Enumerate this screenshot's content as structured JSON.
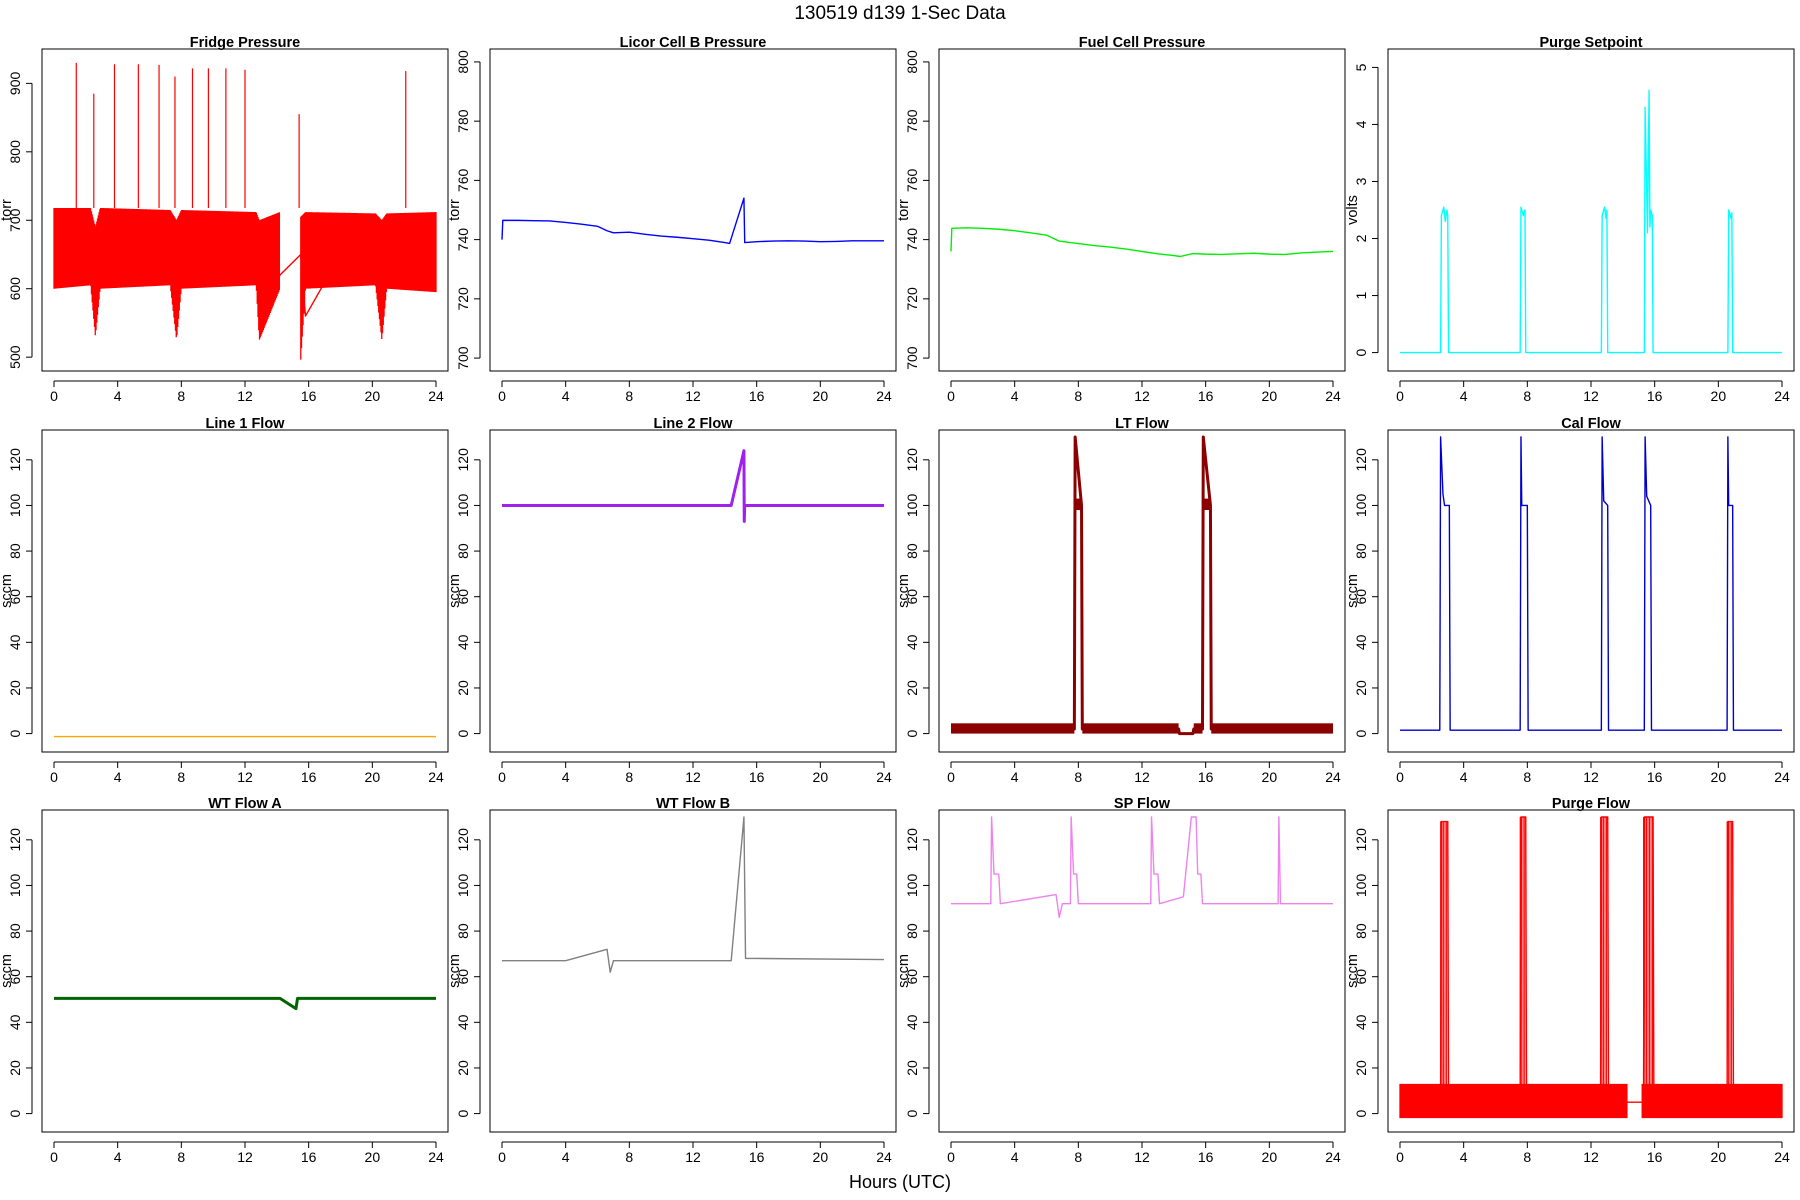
{
  "figure": {
    "title": "130519   d139   1-Sec Data",
    "xlabel": "Hours (UTC)"
  },
  "chart_data": [
    {
      "type": "line",
      "title": "Fridge Pressure",
      "ylabel": "torr",
      "color": "#ff0000",
      "xlim": [
        0,
        24
      ],
      "ylim": [
        490,
        940
      ],
      "xticks": [
        0,
        4,
        8,
        12,
        16,
        20,
        24
      ],
      "yticks": [
        500,
        600,
        700,
        800,
        900
      ],
      "band": {
        "x": [
          0,
          2.3,
          2.6,
          2.9,
          7.3,
          7.7,
          8.0,
          12.7,
          12.9,
          14.2,
          15.5,
          15.8,
          20.2,
          20.6,
          20.9,
          24
        ],
        "lo": [
          600,
          605,
          530,
          600,
          605,
          525,
          600,
          605,
          525,
          600,
          495,
          600,
          605,
          525,
          600,
          595
        ],
        "hi": [
          718,
          718,
          690,
          718,
          715,
          700,
          715,
          712,
          700,
          712,
          705,
          712,
          710,
          700,
          710,
          712
        ],
        "gaps": [
          [
            14.2,
            15.5
          ]
        ]
      },
      "spikes": [
        [
          1.4,
          930
        ],
        [
          2.5,
          885
        ],
        [
          3.8,
          928
        ],
        [
          5.3,
          928
        ],
        [
          6.6,
          927
        ],
        [
          7.6,
          910
        ],
        [
          8.7,
          922
        ],
        [
          9.7,
          922
        ],
        [
          10.8,
          922
        ],
        [
          12.0,
          920
        ],
        [
          15.4,
          855
        ],
        [
          22.1,
          918
        ]
      ],
      "x": [
        0,
        2.3,
        2.6,
        2.9,
        5,
        7.3,
        7.7,
        8.0,
        10,
        12.7,
        12.9,
        14.2,
        15.5,
        15.8,
        18,
        20.2,
        20.6,
        20.9,
        24
      ],
      "y": [
        650,
        650,
        560,
        650,
        650,
        650,
        560,
        650,
        650,
        650,
        560,
        620,
        650,
        560,
        650,
        650,
        560,
        650,
        650
      ]
    },
    {
      "type": "line",
      "title": "Licor Cell B Pressure",
      "ylabel": "torr",
      "color": "#0000ff",
      "xlim": [
        0,
        24
      ],
      "ylim": [
        698,
        802
      ],
      "xticks": [
        0,
        4,
        8,
        12,
        16,
        20,
        24
      ],
      "yticks": [
        700,
        720,
        740,
        760,
        780,
        800
      ],
      "x": [
        0,
        0.05,
        1,
        2,
        3,
        4,
        5,
        6,
        6.6,
        7,
        8,
        9,
        10,
        11,
        12,
        13,
        14,
        14.3,
        15.2,
        15.25,
        16,
        17,
        18,
        19,
        20,
        21,
        22,
        23,
        24
      ],
      "y": [
        740,
        746.5,
        746.5,
        746.4,
        746.3,
        745.8,
        745.2,
        744.5,
        743,
        742.3,
        742.5,
        741.8,
        741.2,
        740.8,
        740.3,
        739.8,
        739,
        738.7,
        754,
        739,
        739.3,
        739.5,
        739.6,
        739.5,
        739.3,
        739.4,
        739.6,
        739.6,
        739.6
      ]
    },
    {
      "type": "line",
      "title": "Fuel Cell Pressure",
      "ylabel": "torr",
      "color": "#00ee00",
      "xlim": [
        0,
        24
      ],
      "ylim": [
        698,
        802
      ],
      "xticks": [
        0,
        4,
        8,
        12,
        16,
        20,
        24
      ],
      "yticks": [
        700,
        720,
        740,
        760,
        780,
        800
      ],
      "x": [
        0,
        0.05,
        1,
        2,
        3,
        4,
        5,
        6,
        6.8,
        7.5,
        9,
        10,
        11,
        12,
        13,
        14,
        14.4,
        15.2,
        16,
        17,
        18,
        19,
        20,
        21,
        22,
        23,
        24
      ],
      "y": [
        736,
        743.8,
        744,
        743.8,
        743.5,
        743,
        742.3,
        741.5,
        739.5,
        739,
        738,
        737.5,
        736.8,
        736,
        735.2,
        734.6,
        734.3,
        735.3,
        735.1,
        735,
        735.2,
        735.4,
        735.1,
        735,
        735.5,
        735.8,
        736
      ]
    },
    {
      "type": "line",
      "title": "Purge Setpoint",
      "ylabel": "volts",
      "color": "#00ffff",
      "xlim": [
        0,
        24
      ],
      "ylim": [
        -0.2,
        5.2
      ],
      "xticks": [
        0,
        4,
        8,
        12,
        16,
        20,
        24
      ],
      "yticks": [
        0,
        1,
        2,
        3,
        4,
        5
      ],
      "x": [
        0,
        2.55,
        2.6,
        2.75,
        2.85,
        2.95,
        3.0,
        3.05,
        7.55,
        7.6,
        7.75,
        7.85,
        7.9,
        12.65,
        12.7,
        12.85,
        12.95,
        13.0,
        13.05,
        15.35,
        15.4,
        15.55,
        15.65,
        15.7,
        15.75,
        15.85,
        15.9,
        20.6,
        20.65,
        20.8,
        20.85,
        20.9,
        24
      ],
      "y": [
        0,
        0,
        2.4,
        2.55,
        2.3,
        2.5,
        2.4,
        0,
        0,
        2.55,
        2.4,
        2.5,
        0,
        0,
        2.4,
        2.55,
        2.35,
        2.5,
        0,
        0,
        4.3,
        2.1,
        4.6,
        2.2,
        2.5,
        2.4,
        0,
        0,
        2.5,
        2.35,
        2.45,
        0,
        0
      ]
    },
    {
      "type": "line",
      "title": "Line 1 Flow",
      "ylabel": "sccm",
      "color": "#ffa500",
      "xlim": [
        0,
        24
      ],
      "ylim": [
        -5,
        130
      ],
      "xticks": [
        0,
        4,
        8,
        12,
        16,
        20,
        24
      ],
      "yticks": [
        0,
        20,
        40,
        60,
        80,
        100,
        120
      ],
      "x": [
        0,
        24
      ],
      "y": [
        -1.3,
        -1.3
      ]
    },
    {
      "type": "line",
      "title": "Line 2 Flow",
      "ylabel": "sccm",
      "color": "#a020f0",
      "xlim": [
        0,
        24
      ],
      "ylim": [
        -5,
        130
      ],
      "xticks": [
        0,
        4,
        8,
        12,
        16,
        20,
        24
      ],
      "yticks": [
        0,
        20,
        40,
        60,
        80,
        100,
        120
      ],
      "x": [
        0,
        14.4,
        15.2,
        15.22,
        15.25,
        24
      ],
      "y": [
        100,
        100,
        124,
        93,
        100,
        100
      ]
    },
    {
      "type": "line",
      "title": "LT Flow",
      "ylabel": "sccm",
      "color": "#8b0000",
      "xlim": [
        0,
        24
      ],
      "ylim": [
        -5,
        130
      ],
      "xticks": [
        0,
        4,
        8,
        12,
        16,
        20,
        24
      ],
      "yticks": [
        0,
        20,
        40,
        60,
        80,
        100,
        120
      ],
      "x": [
        0,
        7.75,
        7.8,
        8.2,
        8.25,
        14.3,
        14.35,
        15.2,
        15.25,
        15.8,
        15.85,
        16.3,
        16.35,
        24
      ],
      "y": [
        2,
        2,
        130,
        100,
        2,
        2,
        0,
        0,
        2,
        2,
        130,
        100,
        2,
        2
      ]
    },
    {
      "type": "line",
      "title": "Cal Flow",
      "ylabel": "sccm",
      "color": "#0000cd",
      "xlim": [
        0,
        24
      ],
      "ylim": [
        -5,
        130
      ],
      "xticks": [
        0,
        4,
        8,
        12,
        16,
        20,
        24
      ],
      "yticks": [
        0,
        20,
        40,
        60,
        80,
        100,
        120
      ],
      "x": [
        0,
        2.5,
        2.55,
        2.7,
        2.8,
        3.1,
        3.15,
        7.55,
        7.6,
        7.65,
        8.0,
        8.05,
        12.65,
        12.7,
        12.8,
        13.05,
        13.1,
        15.35,
        15.4,
        15.5,
        15.75,
        15.8,
        20.55,
        20.6,
        20.65,
        20.9,
        20.95,
        24
      ],
      "y": [
        1.5,
        1.5,
        130,
        105,
        100,
        100,
        1.5,
        1.5,
        130,
        100,
        100,
        1.5,
        1.5,
        130,
        102,
        100,
        1.5,
        1.5,
        130,
        104,
        100,
        1.5,
        1.5,
        130,
        100,
        100,
        1.5,
        1.5
      ]
    },
    {
      "type": "line",
      "title": "WT Flow A",
      "ylabel": "sccm",
      "color": "#006400",
      "xlim": [
        0,
        24
      ],
      "ylim": [
        -5,
        130
      ],
      "xticks": [
        0,
        4,
        8,
        12,
        16,
        20,
        24
      ],
      "yticks": [
        0,
        20,
        40,
        60,
        80,
        100,
        120
      ],
      "x": [
        0,
        14.2,
        15.2,
        15.3,
        24
      ],
      "y": [
        50.5,
        50.5,
        46,
        50.5,
        50.5
      ]
    },
    {
      "type": "line",
      "title": "WT Flow B",
      "ylabel": "sccm",
      "color": "#808080",
      "xlim": [
        0,
        24
      ],
      "ylim": [
        -5,
        130
      ],
      "xticks": [
        0,
        4,
        8,
        12,
        16,
        20,
        24
      ],
      "yticks": [
        0,
        20,
        40,
        60,
        80,
        100,
        120
      ],
      "x": [
        0,
        4,
        6.6,
        6.8,
        7.0,
        10,
        14.4,
        15.2,
        15.3,
        16,
        24
      ],
      "y": [
        67,
        67,
        72,
        62,
        67,
        67,
        67,
        130,
        68,
        68,
        67.5
      ]
    },
    {
      "type": "line",
      "title": "SP Flow",
      "ylabel": "sccm",
      "color": "#ee82ee",
      "xlim": [
        0,
        24
      ],
      "ylim": [
        -5,
        130
      ],
      "xticks": [
        0,
        4,
        8,
        12,
        16,
        20,
        24
      ],
      "yticks": [
        0,
        20,
        40,
        60,
        80,
        100,
        120
      ],
      "x": [
        0,
        2.5,
        2.55,
        2.7,
        3.0,
        3.1,
        6.6,
        6.8,
        7.0,
        7.5,
        7.55,
        7.7,
        7.9,
        8.0,
        12.55,
        12.6,
        12.75,
        13.0,
        13.1,
        14.6,
        15.1,
        15.4,
        15.5,
        15.7,
        15.8,
        20.55,
        20.6,
        20.7,
        24
      ],
      "y": [
        92,
        92,
        130,
        105,
        105,
        92,
        96,
        86,
        92,
        92,
        130,
        105,
        105,
        92,
        92,
        130,
        105,
        105,
        92,
        95,
        130,
        130,
        105,
        105,
        92,
        92,
        130,
        92,
        92
      ]
    },
    {
      "type": "line",
      "title": "Purge Flow",
      "ylabel": "sccm",
      "color": "#ff0000",
      "xlim": [
        0,
        24
      ],
      "ylim": [
        -5,
        130
      ],
      "xticks": [
        0,
        4,
        8,
        12,
        16,
        20,
        24
      ],
      "yticks": [
        0,
        20,
        40,
        60,
        80,
        100,
        120
      ],
      "band": {
        "x": [
          0,
          14.3,
          15.2,
          24
        ],
        "lo": [
          -2,
          -2,
          -2,
          -2
        ],
        "hi": [
          13,
          13,
          13,
          13
        ],
        "gaps": [
          [
            14.3,
            15.2
          ]
        ]
      },
      "pulses": [
        [
          2.55,
          3.0,
          128
        ],
        [
          7.55,
          7.9,
          130
        ],
        [
          12.6,
          13.05,
          130
        ],
        [
          15.3,
          15.9,
          130
        ],
        [
          20.55,
          20.9,
          128
        ]
      ],
      "x": [
        0,
        2.55,
        2.6,
        3.0,
        3.05,
        7.55,
        7.6,
        7.9,
        7.95,
        12.6,
        12.65,
        13.05,
        13.1,
        14.3,
        15.3,
        15.35,
        15.9,
        15.95,
        20.55,
        20.6,
        20.9,
        20.95,
        24
      ],
      "y": [
        5,
        5,
        128,
        128,
        5,
        5,
        130,
        130,
        5,
        5,
        130,
        130,
        5,
        5,
        5,
        130,
        130,
        5,
        5,
        128,
        128,
        5,
        5
      ]
    }
  ]
}
